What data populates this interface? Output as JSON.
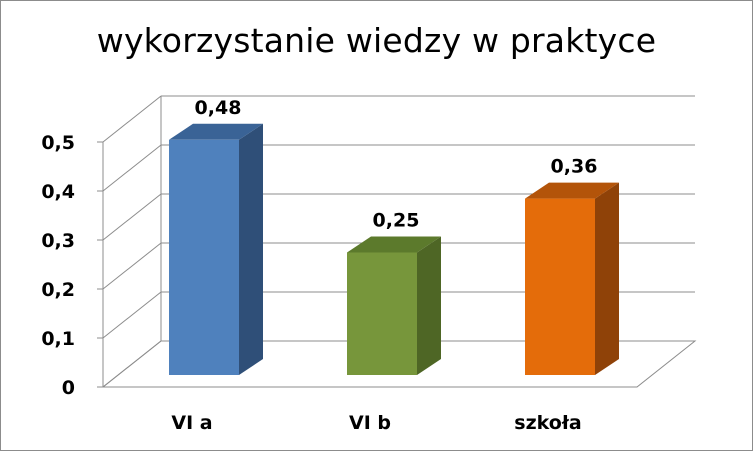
{
  "chart_data": {
    "type": "bar",
    "title": "wykorzystanie wiedzy w praktyce",
    "xlabel": "",
    "ylabel": "",
    "categories": [
      "VI a",
      "VI b",
      "szkoła"
    ],
    "values": [
      0.48,
      0.25,
      0.36
    ],
    "value_labels": [
      "0,48",
      "0,25",
      "0,36"
    ],
    "ylim": [
      0,
      0.5
    ],
    "yticks": [
      0,
      0.1,
      0.2,
      0.3,
      0.4,
      0.5
    ],
    "ytick_labels": [
      "0",
      "0,1",
      "0,2",
      "0,3",
      "0,4",
      "0,5"
    ],
    "grid": true,
    "legend": "none",
    "style": "3d-column",
    "colors": {
      "front": [
        "#4f81bd",
        "#77963b",
        "#e46c0a"
      ],
      "top": [
        "#3a6396",
        "#5c7a2c",
        "#b3540a"
      ],
      "side": [
        "#2f4f78",
        "#4e6625",
        "#8f4208"
      ]
    }
  }
}
